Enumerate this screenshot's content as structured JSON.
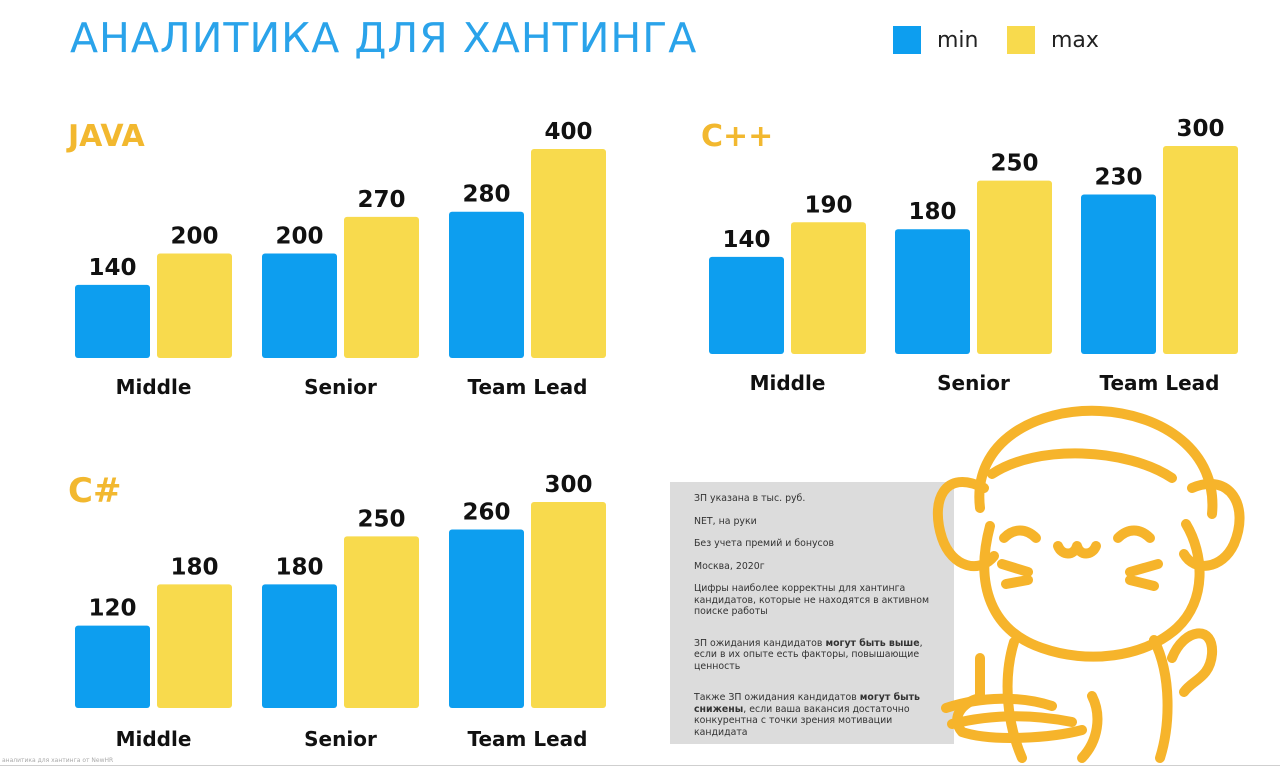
{
  "title": "АНАЛИТИКА ДЛЯ ХАНТИНГА",
  "legend": [
    {
      "label": "min",
      "color": "#0d9eef"
    },
    {
      "label": "max",
      "color": "#f8da4d"
    }
  ],
  "chart_data": [
    {
      "type": "bar",
      "title": "JAVA",
      "categories": [
        "Middle",
        "Senior",
        "Team Lead"
      ],
      "series": [
        {
          "name": "min",
          "values": [
            140,
            200,
            280
          ]
        },
        {
          "name": "max",
          "values": [
            200,
            270,
            400
          ]
        }
      ],
      "ylim": [
        0,
        400
      ],
      "grid": false,
      "legend": "top-right"
    },
    {
      "type": "bar",
      "title": "C++",
      "categories": [
        "Middle",
        "Senior",
        "Team Lead"
      ],
      "series": [
        {
          "name": "min",
          "values": [
            140,
            180,
            230
          ]
        },
        {
          "name": "max",
          "values": [
            190,
            250,
            300
          ]
        }
      ],
      "ylim": [
        0,
        300
      ],
      "grid": false,
      "legend": "top-right"
    },
    {
      "type": "bar",
      "title": "C#",
      "categories": [
        "Middle",
        "Senior",
        "Team Lead"
      ],
      "series": [
        {
          "name": "min",
          "values": [
            120,
            180,
            260
          ]
        },
        {
          "name": "max",
          "values": [
            180,
            250,
            300
          ]
        }
      ],
      "ylim": [
        0,
        300
      ],
      "grid": false,
      "legend": "top-right"
    }
  ],
  "notes": {
    "line1": "ЗП указана в тыс. руб.",
    "line2": "NET, на руки",
    "line3": "Без учета премий и бонусов",
    "line4": "Москва, 2020г",
    "line5": "Цифры наиболее корректны для хантинга кандидатов, которые не находятся в активном поиске работы",
    "p6a": "ЗП ожидания кандидатов ",
    "p6b": "могут быть выше",
    "p6c": ", если в их опыте есть факторы, повышающие ценность",
    "p7a": "Также ЗП ожидания кандидатов ",
    "p7b": "могут быть снижены",
    "p7c": ", если ваша вакансия достаточно конкурентна с точки зрения мотивации кандидата"
  },
  "footnote": "аналитика для хантинга от NewHR"
}
